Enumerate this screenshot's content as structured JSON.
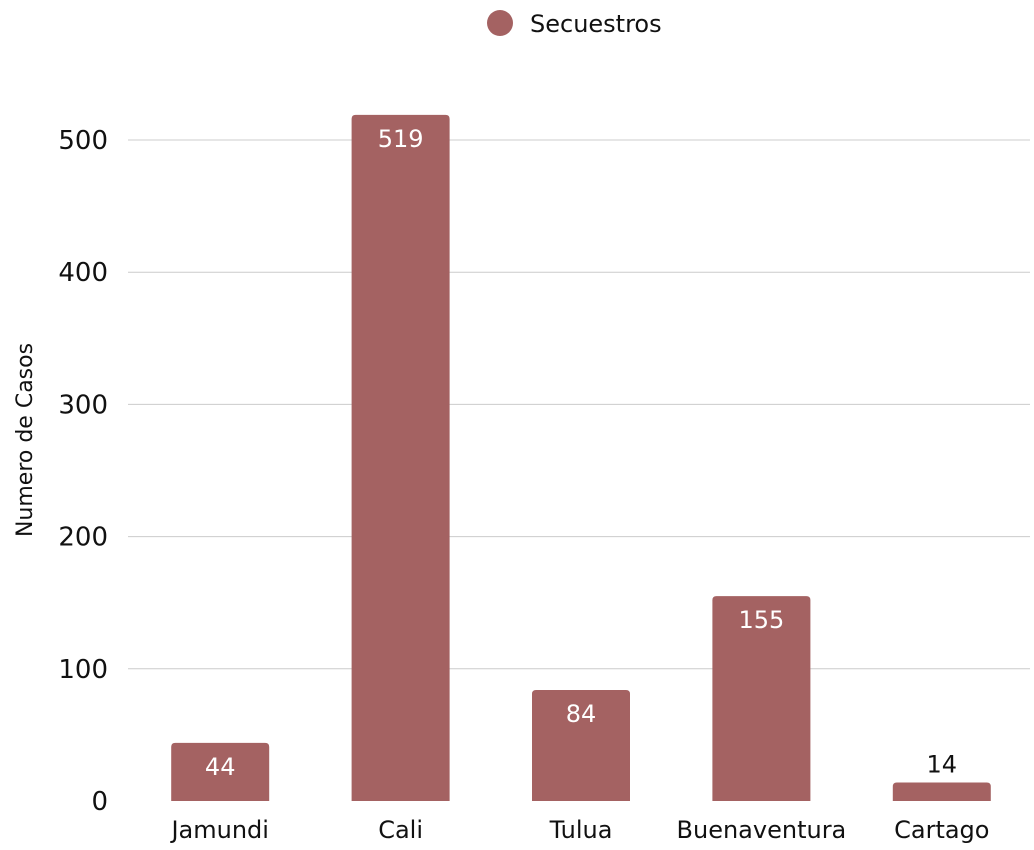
{
  "chart_data": {
    "type": "bar",
    "categories": [
      "Jamundi",
      "Cali",
      "Tulua",
      "Buenaventura",
      "Cartago"
    ],
    "series": [
      {
        "name": "Secuestros",
        "values": [
          44,
          519,
          84,
          155,
          14
        ],
        "color": "#a46262"
      }
    ],
    "data_labels": [
      "44",
      "519",
      "84",
      "155",
      "14"
    ],
    "ylabel": "Numero de Casos",
    "xlabel": "",
    "ylim": [
      0,
      500
    ],
    "yticks": [
      0,
      100,
      200,
      300,
      400,
      500
    ],
    "ytick_labels": [
      "0",
      "100",
      "200",
      "300",
      "400",
      "500"
    ],
    "grid": true,
    "legend": "top-center"
  }
}
